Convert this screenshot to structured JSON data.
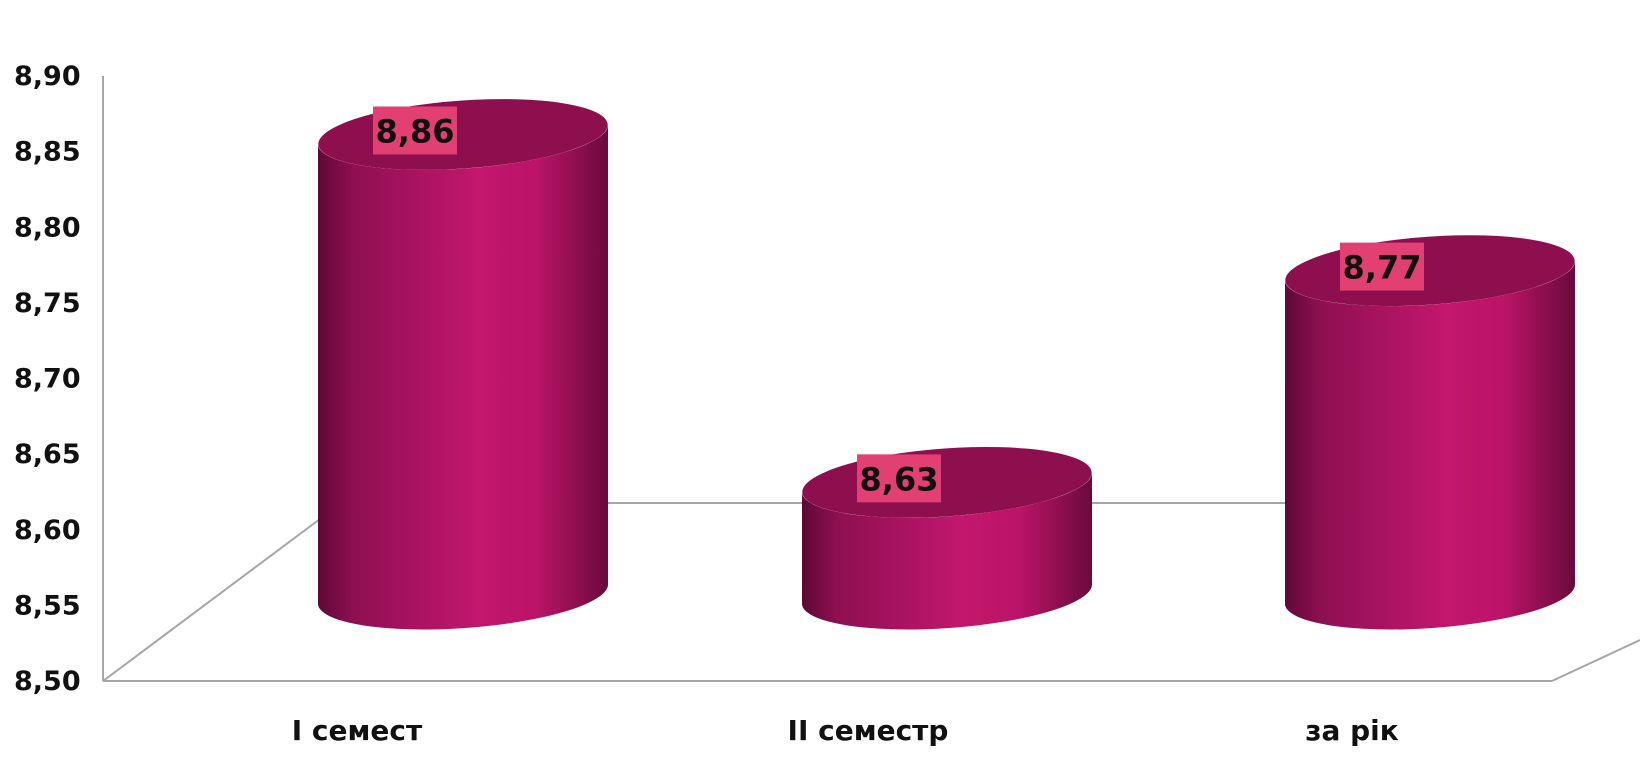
{
  "chart_data": {
    "type": "bar",
    "style": "3d-cylinder",
    "categories": [
      "I семест",
      "II семестр",
      "за рік"
    ],
    "values": [
      8.86,
      8.63,
      8.77
    ],
    "data_labels": [
      "8,86",
      "8,63",
      "8,77"
    ],
    "ylim": [
      8.5,
      8.9
    ],
    "y_ticks": [
      "8,50",
      "8,55",
      "8,60",
      "8,65",
      "8,70",
      "8,75",
      "8,80",
      "8,85",
      "8,90"
    ],
    "title": "",
    "xlabel": "",
    "ylabel": "",
    "grid": false,
    "legend": "none"
  },
  "colors": {
    "bar_main": "#C0136A",
    "bar_dark": "#6E0A3E",
    "bar_top": "#8E0F4E",
    "label_bg": "#E23F73",
    "axis": "#A6A6A6"
  }
}
